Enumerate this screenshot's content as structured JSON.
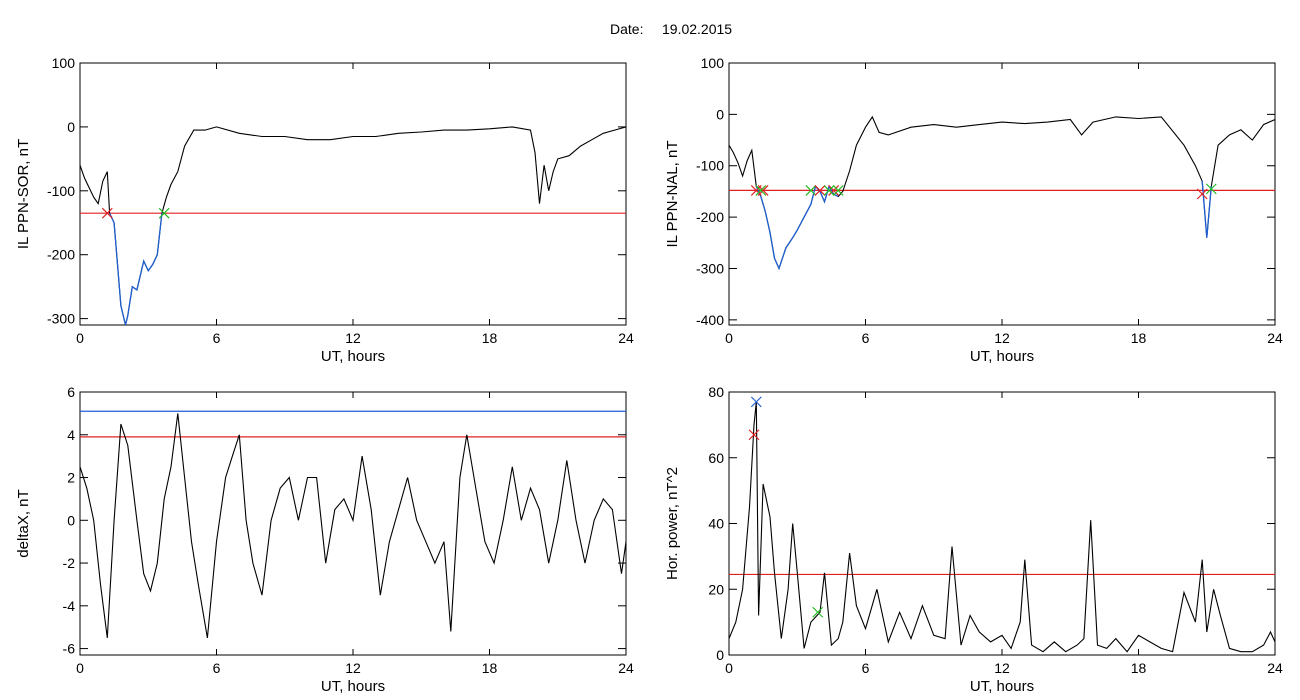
{
  "header": {
    "date_label": "Date:",
    "date_value": "19.02.2015"
  },
  "chart_data": [
    {
      "type": "line",
      "title": "",
      "xlabel": "UT, hours",
      "ylabel": "IL PPN-SOR, nT",
      "xlim": [
        0,
        24
      ],
      "ylim": [
        -310,
        100
      ],
      "xticks": [
        0,
        6,
        12,
        18,
        24
      ],
      "yticks": [
        -300,
        -200,
        -100,
        0,
        100
      ],
      "colors": {
        "trace": "#000000",
        "highlight": "#1f5fd0",
        "threshold": "#e02020",
        "start_marker": "#e02020",
        "end_marker": "#22bb22"
      },
      "series": [
        {
          "x": [
            0,
            0.2,
            0.4,
            0.6,
            0.8,
            1.0,
            1.2,
            1.3,
            1.5,
            1.8,
            2.0,
            2.1,
            2.3,
            2.5,
            2.8,
            3.0,
            3.2,
            3.4,
            3.6,
            3.8,
            4.0,
            4.3,
            4.6,
            5.0,
            5.5,
            6.0,
            7.0,
            8.0,
            9.0,
            10.0,
            11.0,
            12.0,
            13.0,
            14.0,
            15.0,
            16.0,
            17.0,
            18.0,
            19.0,
            19.8,
            20.0,
            20.2,
            20.4,
            20.6,
            20.8,
            21.0,
            21.5,
            22.0,
            22.5,
            23.0,
            23.5,
            24.0
          ],
          "y": [
            -60,
            -80,
            -95,
            -110,
            -120,
            -85,
            -70,
            -135,
            -150,
            -280,
            -310,
            -295,
            -250,
            -255,
            -210,
            -225,
            -215,
            -200,
            -135,
            -110,
            -90,
            -70,
            -30,
            -5,
            -5,
            0,
            -10,
            -15,
            -15,
            -20,
            -20,
            -15,
            -15,
            -10,
            -8,
            -5,
            -5,
            -3,
            0,
            -5,
            -40,
            -120,
            -60,
            -100,
            -70,
            -50,
            -45,
            -30,
            -20,
            -10,
            -5,
            0
          ]
        }
      ],
      "highlight": {
        "x_from": 1.3,
        "x_to": 3.6
      },
      "threshold": -135,
      "markers": [
        {
          "x": 1.2,
          "y": -135,
          "kind": "start"
        },
        {
          "x": 3.7,
          "y": -135,
          "kind": "end"
        }
      ]
    },
    {
      "type": "line",
      "title": "",
      "xlabel": "UT, hours",
      "ylabel": "IL PPN-NAL, nT",
      "xlim": [
        0,
        24
      ],
      "ylim": [
        -410,
        100
      ],
      "xticks": [
        0,
        6,
        12,
        18,
        24
      ],
      "yticks": [
        -400,
        -300,
        -200,
        -100,
        0,
        100
      ],
      "colors": {
        "trace": "#000000",
        "highlight": "#1f5fd0",
        "threshold": "#e02020",
        "start_marker": "#e02020",
        "end_marker": "#22bb22"
      },
      "series": [
        {
          "x": [
            0,
            0.2,
            0.4,
            0.6,
            0.8,
            1.0,
            1.2,
            1.4,
            1.6,
            1.8,
            2.0,
            2.2,
            2.5,
            2.8,
            3.0,
            3.3,
            3.6,
            3.8,
            4.0,
            4.2,
            4.4,
            4.6,
            4.8,
            5.0,
            5.3,
            5.6,
            6.0,
            6.3,
            6.6,
            7.0,
            8.0,
            9.0,
            10.0,
            11.0,
            12.0,
            13.0,
            14.0,
            15.0,
            15.5,
            16.0,
            17.0,
            18.0,
            19.0,
            20.0,
            20.5,
            20.8,
            21.0,
            21.2,
            21.5,
            22.0,
            22.5,
            23.0,
            23.5,
            24.0
          ],
          "y": [
            -60,
            -75,
            -95,
            -120,
            -90,
            -70,
            -140,
            -160,
            -190,
            -230,
            -280,
            -300,
            -260,
            -240,
            -225,
            -200,
            -175,
            -140,
            -150,
            -170,
            -140,
            -155,
            -160,
            -150,
            -110,
            -60,
            -25,
            -5,
            -35,
            -40,
            -25,
            -20,
            -25,
            -20,
            -15,
            -18,
            -15,
            -10,
            -40,
            -15,
            -5,
            -8,
            -5,
            -60,
            -100,
            -130,
            -240,
            -140,
            -60,
            -40,
            -30,
            -50,
            -20,
            -10
          ]
        }
      ],
      "highlight": {
        "x_from": 1.2,
        "x_to": 4.9,
        "x_from_2": 20.8,
        "x_to_2": 21.2
      },
      "threshold": -148,
      "markers": [
        {
          "x": 1.2,
          "y": -148,
          "kind": "start"
        },
        {
          "x": 1.5,
          "y": -148,
          "kind": "start"
        },
        {
          "x": 1.4,
          "y": -148,
          "kind": "end"
        },
        {
          "x": 3.6,
          "y": -148,
          "kind": "end"
        },
        {
          "x": 4.0,
          "y": -148,
          "kind": "start"
        },
        {
          "x": 4.6,
          "y": -148,
          "kind": "start"
        },
        {
          "x": 4.4,
          "y": -148,
          "kind": "end"
        },
        {
          "x": 4.8,
          "y": -148,
          "kind": "end"
        },
        {
          "x": 20.8,
          "y": -155,
          "kind": "start"
        },
        {
          "x": 21.2,
          "y": -145,
          "kind": "end"
        }
      ]
    },
    {
      "type": "line",
      "title": "",
      "xlabel": "UT, hours",
      "ylabel": "deltaX, nT",
      "xlim": [
        0,
        24
      ],
      "ylim": [
        -6.3,
        6
      ],
      "xticks": [
        0,
        6,
        12,
        18,
        24
      ],
      "yticks": [
        -6,
        -4,
        -2,
        0,
        2,
        4,
        6
      ],
      "colors": {
        "trace": "#000000",
        "threshold": "#e02020",
        "threshold_2": "#1f5fd0"
      },
      "series": [
        {
          "x": [
            0,
            0.3,
            0.6,
            0.9,
            1.2,
            1.5,
            1.8,
            2.1,
            2.5,
            2.8,
            3.1,
            3.4,
            3.7,
            4.0,
            4.3,
            4.6,
            4.9,
            5.2,
            5.6,
            6.0,
            6.4,
            6.7,
            7.0,
            7.3,
            7.6,
            8.0,
            8.4,
            8.8,
            9.2,
            9.6,
            10.0,
            10.4,
            10.8,
            11.2,
            11.6,
            12.0,
            12.4,
            12.8,
            13.2,
            13.6,
            14.0,
            14.4,
            14.8,
            15.2,
            15.6,
            16.0,
            16.3,
            16.7,
            17.0,
            17.4,
            17.8,
            18.2,
            18.6,
            19.0,
            19.4,
            19.8,
            20.2,
            20.6,
            21.0,
            21.4,
            21.8,
            22.2,
            22.6,
            23.0,
            23.4,
            23.8,
            24.0
          ],
          "y": [
            2.5,
            1.5,
            0,
            -3,
            -5.5,
            0,
            4.5,
            3.5,
            0,
            -2.5,
            -3.3,
            -2,
            1,
            2.5,
            5,
            2,
            -1,
            -3,
            -5.5,
            -1,
            2,
            3,
            4,
            0,
            -2,
            -3.5,
            0,
            1.5,
            2,
            0,
            2,
            2,
            -2,
            0.5,
            1,
            0,
            3,
            0.5,
            -3.5,
            -1,
            0.5,
            2,
            0,
            -1,
            -2,
            -1,
            -5.2,
            2,
            4,
            1.5,
            -1,
            -2,
            0,
            2.5,
            0,
            1.5,
            0.5,
            -2,
            0,
            2.8,
            0,
            -2,
            0,
            1,
            0.5,
            -2.5,
            -1
          ]
        }
      ],
      "threshold": 3.9,
      "threshold_2": 5.1,
      "markers": []
    },
    {
      "type": "line",
      "title": "",
      "xlabel": "UT, hours",
      "ylabel": "Hor. power, nT^2",
      "xlim": [
        0,
        24
      ],
      "ylim": [
        0,
        80
      ],
      "xticks": [
        0,
        6,
        12,
        18,
        24
      ],
      "yticks": [
        0,
        20,
        40,
        60,
        80
      ],
      "colors": {
        "trace": "#000000",
        "threshold": "#e02020",
        "start_marker": "#e02020",
        "end_marker": "#22bb22",
        "peak_marker": "#1f5fd0"
      },
      "series": [
        {
          "x": [
            0,
            0.3,
            0.6,
            0.9,
            1.1,
            1.2,
            1.3,
            1.5,
            1.8,
            2.0,
            2.3,
            2.6,
            2.8,
            3.0,
            3.3,
            3.6,
            4.0,
            4.2,
            4.5,
            4.8,
            5.0,
            5.3,
            5.6,
            6.0,
            6.5,
            7.0,
            7.5,
            8.0,
            8.5,
            9.0,
            9.5,
            9.8,
            10.2,
            10.6,
            11.0,
            11.5,
            12.0,
            12.4,
            12.8,
            13.0,
            13.3,
            13.8,
            14.3,
            14.8,
            15.3,
            15.6,
            15.9,
            16.2,
            16.6,
            17.0,
            17.5,
            18.0,
            18.5,
            19.0,
            19.5,
            20.0,
            20.5,
            20.8,
            21.0,
            21.3,
            21.6,
            22.0,
            22.5,
            23.0,
            23.5,
            23.8,
            24.0
          ],
          "y": [
            5,
            10,
            20,
            45,
            70,
            77,
            12,
            52,
            42,
            25,
            5,
            20,
            40,
            25,
            2,
            10,
            13,
            25,
            3,
            5,
            10,
            31,
            15,
            8,
            20,
            4,
            13,
            5,
            15,
            6,
            5,
            33,
            3,
            12,
            7,
            4,
            6,
            2,
            10,
            29,
            3,
            1,
            4,
            1,
            3,
            5,
            41,
            3,
            2,
            5,
            1,
            6,
            4,
            2,
            1,
            19,
            10,
            29,
            7,
            20,
            12,
            2,
            1,
            1,
            3,
            7,
            4
          ]
        }
      ],
      "threshold": 24.5,
      "markers": [
        {
          "x": 1.1,
          "y": 67,
          "kind": "start"
        },
        {
          "x": 1.2,
          "y": 77,
          "kind": "peak"
        },
        {
          "x": 3.9,
          "y": 13,
          "kind": "end"
        }
      ]
    }
  ]
}
